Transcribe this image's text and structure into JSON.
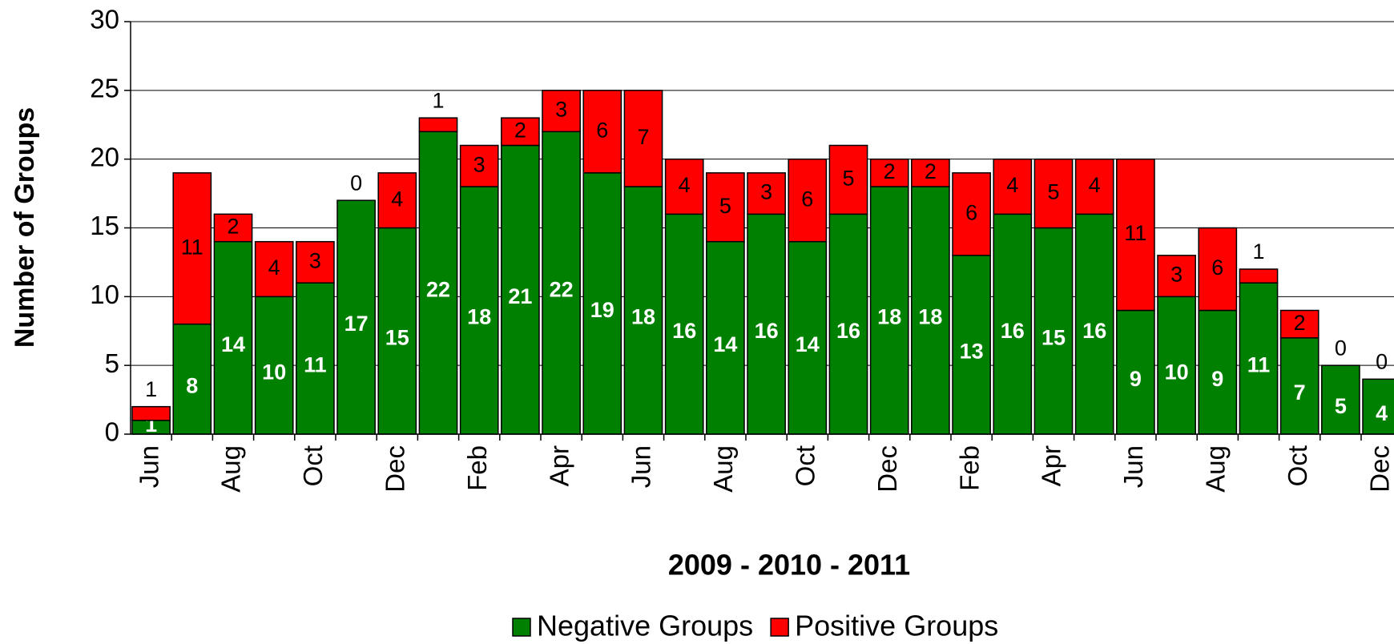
{
  "chart_data": {
    "type": "stacked_bar",
    "x_label": "2009 - 2010 - 2011",
    "y_label": "Number of Groups",
    "categories": [
      "Jun",
      null,
      "Aug",
      null,
      "Oct",
      null,
      "Dec",
      null,
      "Feb",
      null,
      "Apr",
      null,
      "Jun",
      null,
      "Aug",
      null,
      "Oct",
      null,
      "Dec",
      null,
      "Feb",
      null,
      "Apr",
      null,
      "Jun",
      null,
      "Aug",
      null,
      "Oct",
      null,
      "Dec"
    ],
    "series": [
      {
        "name": "Negative Groups",
        "color": "#008000",
        "values": [
          1,
          8,
          14,
          10,
          11,
          17,
          15,
          22,
          18,
          21,
          22,
          19,
          18,
          16,
          14,
          16,
          14,
          16,
          18,
          18,
          13,
          16,
          15,
          16,
          9,
          10,
          9,
          11,
          7,
          5,
          4
        ]
      },
      {
        "name": "Positive Groups",
        "color": "#ff0000",
        "values": [
          1,
          11,
          2,
          4,
          3,
          0,
          4,
          1,
          3,
          2,
          3,
          6,
          7,
          4,
          5,
          3,
          6,
          5,
          2,
          2,
          6,
          4,
          5,
          4,
          11,
          3,
          6,
          1,
          2,
          0,
          0
        ]
      }
    ],
    "ylim": [
      0,
      30
    ],
    "yticks": [
      0,
      5,
      10,
      15,
      20,
      25,
      30
    ],
    "grid": true,
    "legend": "bottom"
  }
}
